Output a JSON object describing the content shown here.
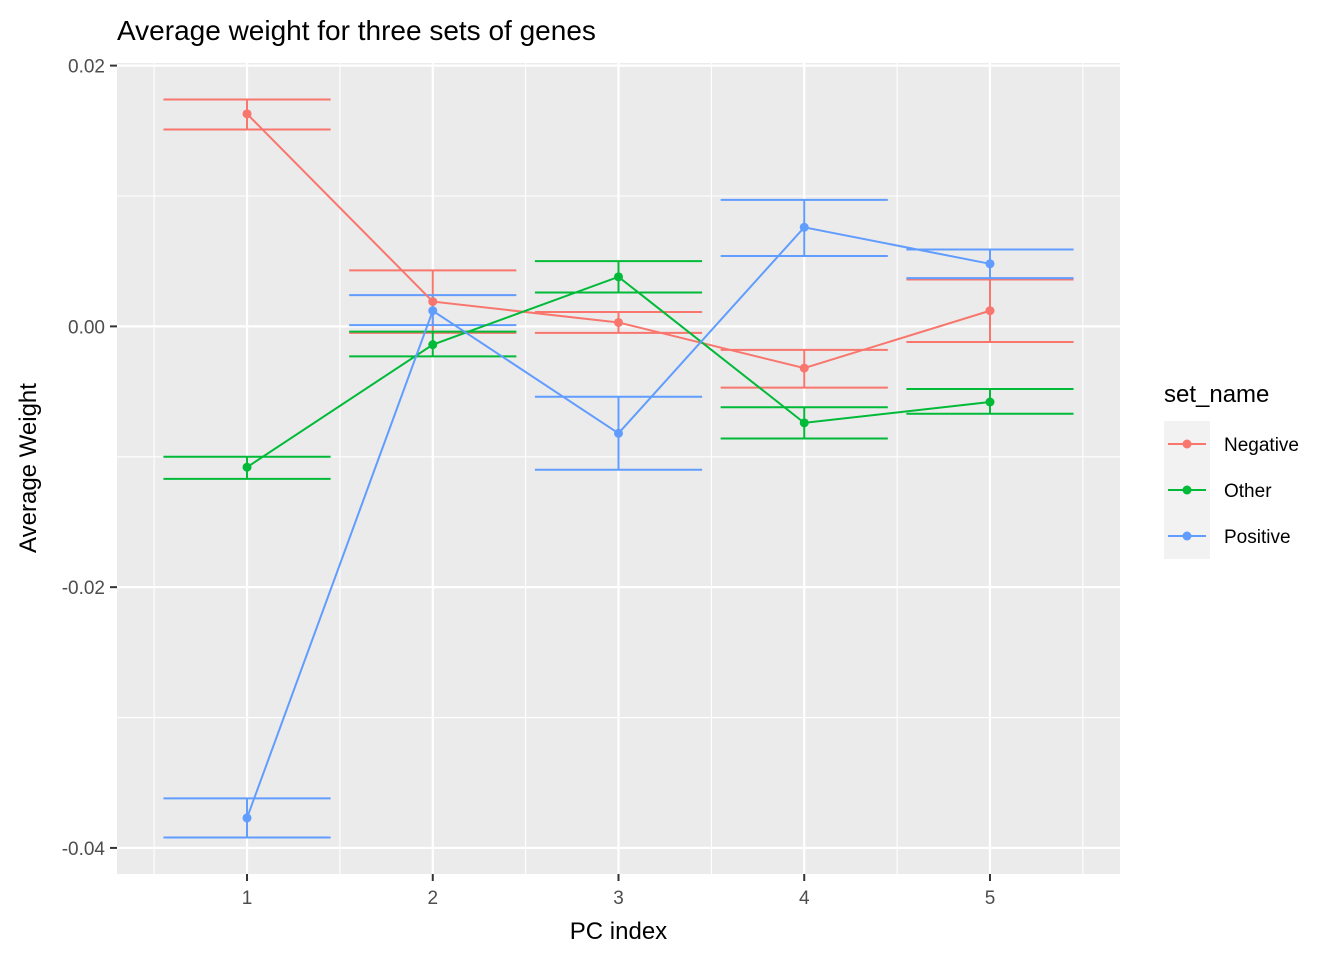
{
  "chart_data": {
    "type": "line",
    "title": "Average weight for three sets of genes",
    "xlabel": "PC index",
    "ylabel": "Average Weight",
    "categories": [
      "1",
      "2",
      "3",
      "4",
      "5"
    ],
    "xlim": [
      0.3,
      5.7
    ],
    "ylim": [
      -0.042,
      0.0202
    ],
    "y_ticks": [
      -0.04,
      -0.02,
      0.0,
      0.02
    ],
    "y_tick_labels": [
      "-0.04",
      "-0.02",
      "0.00",
      "0.02"
    ],
    "grid": true,
    "error_bars": true,
    "legend": {
      "title": "set_name",
      "placement": "right"
    },
    "series": [
      {
        "name": "Negative",
        "color": "#F8766D",
        "values": [
          0.0163,
          0.0019,
          0.0003,
          -0.0032,
          0.0012
        ],
        "lower": [
          0.0151,
          -0.0005,
          -0.0005,
          -0.0047,
          -0.0012
        ],
        "upper": [
          0.0174,
          0.0043,
          0.0011,
          -0.0018,
          0.0036
        ]
      },
      {
        "name": "Other",
        "color": "#00BA38",
        "values": [
          -0.0108,
          -0.0014,
          0.0038,
          -0.0074,
          -0.0058
        ],
        "lower": [
          -0.0117,
          -0.0023,
          0.0026,
          -0.0086,
          -0.0067
        ],
        "upper": [
          -0.01,
          -0.0004,
          0.005,
          -0.0062,
          -0.0048
        ]
      },
      {
        "name": "Positive",
        "color": "#619CFF",
        "values": [
          -0.0377,
          0.0012,
          -0.0082,
          0.0076,
          0.0048
        ],
        "lower": [
          -0.0392,
          0.0001,
          -0.011,
          0.0054,
          0.0037
        ],
        "upper": [
          -0.0362,
          0.0024,
          -0.0054,
          0.0097,
          0.0059
        ]
      }
    ]
  }
}
